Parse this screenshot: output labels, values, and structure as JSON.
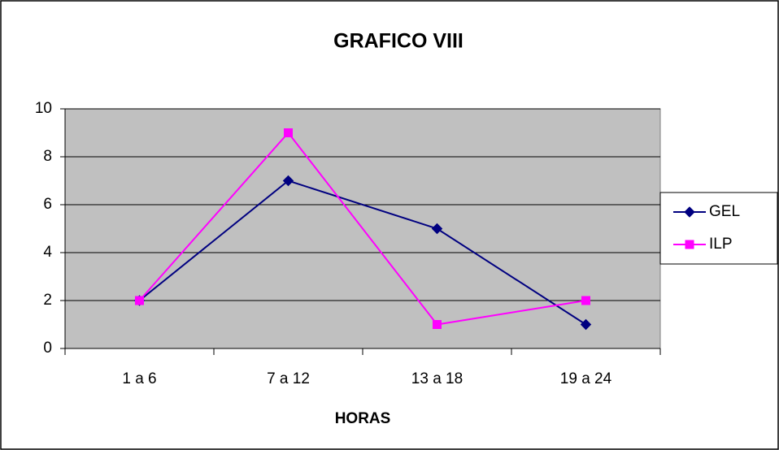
{
  "chart_data": {
    "type": "line",
    "title": "GRAFICO VIII",
    "x_label": "HORAS",
    "categories": [
      "1 a 6",
      "7 a 12",
      "13 a 18",
      "19 a 24"
    ],
    "series": [
      {
        "name": "GEL",
        "color": "#000080",
        "marker": "diamond",
        "values": [
          2,
          7,
          5,
          1
        ]
      },
      {
        "name": "ILP",
        "color": "#ff00ff",
        "marker": "square",
        "values": [
          2,
          9,
          1,
          2
        ]
      }
    ],
    "ylim": [
      0,
      10
    ],
    "yticks": [
      0,
      2,
      4,
      6,
      8,
      10
    ],
    "grid": true,
    "legend": "right",
    "plot_background": "#c0c0c0"
  }
}
